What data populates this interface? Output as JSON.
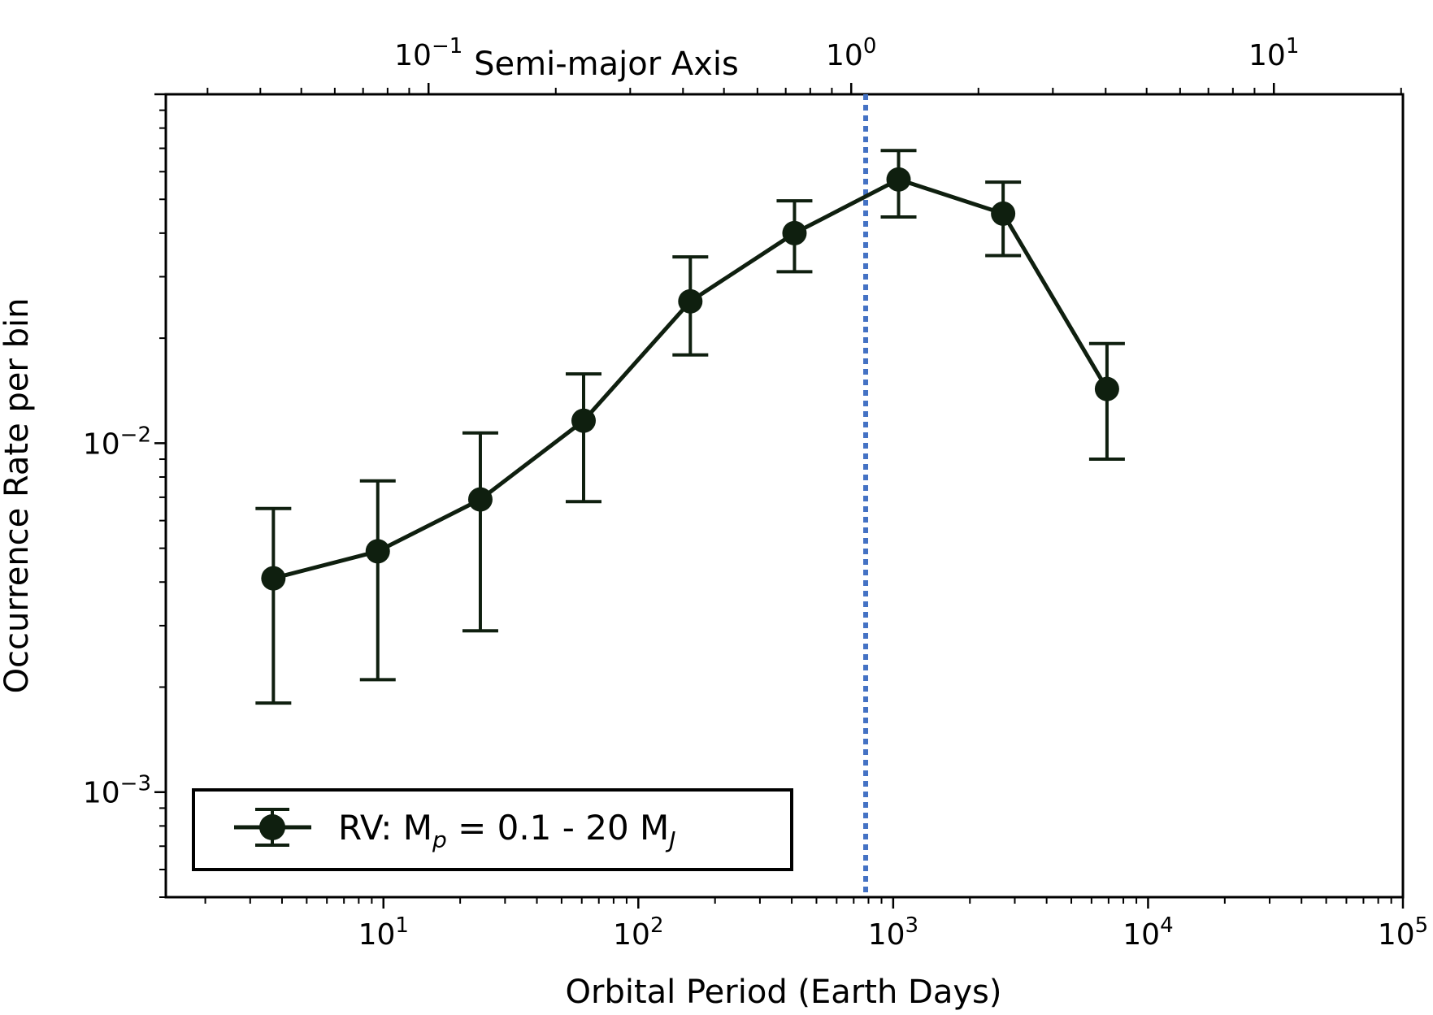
{
  "chart_data": {
    "type": "line",
    "title": "",
    "xlabel": "Orbital Period (Earth Days)",
    "ylabel": "Occurrence Rate per bin",
    "top_xlabel": "Semi-major Axis",
    "xscale": "log",
    "yscale": "log",
    "xlim": [
      1.4,
      100000
    ],
    "ylim": [
      0.0005,
      0.1
    ],
    "top_xlim": [
      0.0239,
      20.2
    ],
    "x_ticks": [
      {
        "value": 10,
        "base": "10",
        "exp": "1"
      },
      {
        "value": 100,
        "base": "10",
        "exp": "2"
      },
      {
        "value": 1000,
        "base": "10",
        "exp": "3"
      },
      {
        "value": 10000,
        "base": "10",
        "exp": "4"
      },
      {
        "value": 100000,
        "base": "10",
        "exp": "5"
      }
    ],
    "y_ticks": [
      {
        "value": 0.01,
        "base": "10",
        "exp": "−2"
      },
      {
        "value": 0.001,
        "base": "10",
        "exp": "−3"
      }
    ],
    "top_ticks": [
      {
        "value": 0.1,
        "base": "10",
        "exp": "−1"
      },
      {
        "value": 1,
        "base": "10",
        "exp": "0"
      },
      {
        "value": 10,
        "base": "10",
        "exp": "1"
      }
    ],
    "series": [
      {
        "name": "RV: Mp = 0.1 - 20 MJ",
        "color": "#0f1f0f",
        "x": [
          3.7,
          9.5,
          24,
          61,
          160,
          410,
          1050,
          2700,
          6900
        ],
        "y": [
          0.0041,
          0.0049,
          0.0069,
          0.0116,
          0.0255,
          0.04,
          0.057,
          0.0455,
          0.0143
        ],
        "yerr_low": [
          0.0018,
          0.0021,
          0.0029,
          0.0068,
          0.0179,
          0.031,
          0.0445,
          0.0345,
          0.009
        ],
        "yerr_high": [
          0.0065,
          0.0078,
          0.0107,
          0.0158,
          0.0342,
          0.0495,
          0.069,
          0.056,
          0.0193
        ]
      }
    ],
    "vline": {
      "x": 780,
      "color": "#4472c4",
      "style": "dotted"
    },
    "legend": {
      "placement": "lower-left",
      "prefix": "RV: M",
      "sub1": "p",
      "middle": " = 0.1 - 20 M",
      "sub2": "J"
    }
  }
}
